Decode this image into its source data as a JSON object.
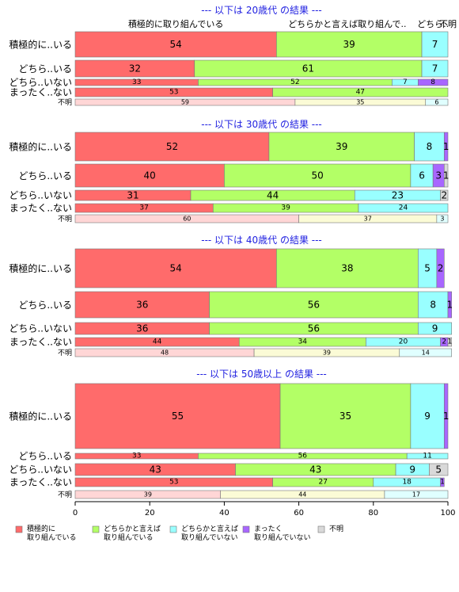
{
  "chart_data": {
    "type": "bar",
    "orientation": "horizontal",
    "stacked": true,
    "xlim": [
      0,
      100
    ],
    "xticks": [
      "0",
      "20",
      "40",
      "60",
      "80",
      "100"
    ],
    "column_headers": [
      {
        "text": "積極的に取り組んでいる",
        "at": 27
      },
      {
        "text": "どちらかと言えば取り組んで..",
        "at": 73
      },
      {
        "text": "どちら..",
        "at": 96
      },
      {
        "text": "不明",
        "at": 100
      }
    ],
    "series": [
      {
        "name": "積極的に\n取り組んでいる",
        "color": "#ff6b6b",
        "light": "#ffd6d6"
      },
      {
        "name": "どちらかと言えば\n取り組んでいる",
        "color": "#b3ff66",
        "light": "#fbfbd6"
      },
      {
        "name": "どちらかと言えば\n取り組んでいない",
        "color": "#99ffff",
        "light": "#e0ffff"
      },
      {
        "name": "まったく\n取り組んでいない",
        "color": "#a866ff",
        "light": "#e6d6ff"
      },
      {
        "name": "不明",
        "color": "#d9d9d9",
        "light": "#eeeeee"
      }
    ],
    "panels": [
      {
        "title": "--- 以下は 20歳代 の結果 ---",
        "rows": [
          {
            "label": "積極的に..いる",
            "values": [
              54,
              39,
              7,
              0,
              0
            ]
          },
          {
            "label": "どちら..いる",
            "values": [
              32,
              61,
              7,
              0,
              0
            ]
          },
          {
            "label": "どちら..いない",
            "values": [
              33,
              52,
              7,
              8,
              0
            ]
          },
          {
            "label": "まったく..ない",
            "values": [
              53,
              47,
              0,
              0,
              0
            ]
          },
          {
            "label": "不明",
            "values": [
              59,
              35,
              6,
              0,
              0
            ]
          }
        ]
      },
      {
        "title": "--- 以下は 30歳代 の結果 ---",
        "rows": [
          {
            "label": "積極的に..いる",
            "values": [
              52,
              39,
              8,
              1,
              0
            ]
          },
          {
            "label": "どちら..いる",
            "values": [
              40,
              50,
              6,
              3,
              1
            ]
          },
          {
            "label": "どちら..いない",
            "values": [
              31,
              44,
              23,
              0,
              2
            ]
          },
          {
            "label": "まったく..ない",
            "values": [
              37,
              39,
              24,
              0,
              0
            ]
          },
          {
            "label": "不明",
            "values": [
              60,
              37,
              3,
              0,
              0
            ]
          }
        ]
      },
      {
        "title": "--- 以下は 40歳代 の結果 ---",
        "rows": [
          {
            "label": "積極的に..いる",
            "values": [
              54,
              38,
              5,
              2,
              0
            ]
          },
          {
            "label": "どちら..いる",
            "values": [
              36,
              56,
              8,
              1,
              0
            ]
          },
          {
            "label": "どちら..いない",
            "values": [
              36,
              56,
              9,
              0,
              0
            ]
          },
          {
            "label": "まったく..ない",
            "values": [
              44,
              34,
              20,
              2,
              1
            ]
          },
          {
            "label": "不明",
            "values": [
              48,
              39,
              14,
              0,
              0
            ]
          }
        ]
      },
      {
        "title": "--- 以下は 50歳以上 の結果 ---",
        "rows": [
          {
            "label": "積極的に..いる",
            "values": [
              55,
              35,
              9,
              1,
              0
            ]
          },
          {
            "label": "どちら..いる",
            "values": [
              33,
              56,
              11,
              0,
              0
            ]
          },
          {
            "label": "どちら..いない",
            "values": [
              43,
              43,
              9,
              0,
              5
            ]
          },
          {
            "label": "まったく..ない",
            "values": [
              53,
              27,
              18,
              1,
              0
            ]
          },
          {
            "label": "不明",
            "values": [
              39,
              44,
              17,
              0,
              0
            ]
          }
        ]
      }
    ]
  }
}
